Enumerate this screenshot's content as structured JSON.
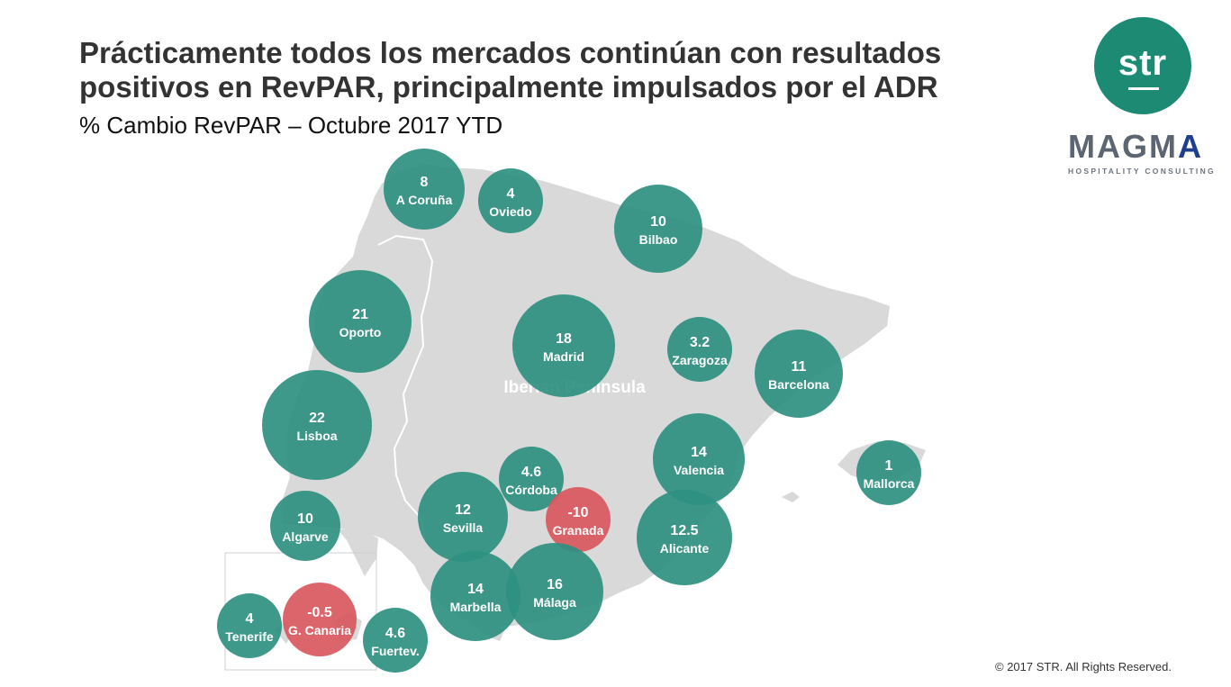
{
  "header": {
    "title": "Prácticamente todos los mercados continúan con resultados positivos en RevPAR, principalmente impulsados por el ADR",
    "subtitle": "% Cambio RevPAR – Octubre 2017 YTD"
  },
  "map": {
    "region_label": "Iberian Peninsula"
  },
  "logos": {
    "str": "str",
    "magma_left": "MAGM",
    "magma_right": "A",
    "magma_sub": "HOSPITALITY CONSULTING"
  },
  "footer": {
    "copyright": "© 2017 STR. All Rights Reserved."
  },
  "colors": {
    "positive": "#2e9080",
    "negative": "#d9575e",
    "land": "#d9d9d9",
    "brand": "#1d8a73"
  },
  "chart_data": {
    "type": "bubble-map",
    "title": "% Cambio RevPAR – Octubre 2017 YTD",
    "points": [
      {
        "label": "A Coruña",
        "value": "8"
      },
      {
        "label": "Oviedo",
        "value": "4"
      },
      {
        "label": "Bilbao",
        "value": "10"
      },
      {
        "label": "Oporto",
        "value": "21"
      },
      {
        "label": "Madrid",
        "value": "18"
      },
      {
        "label": "Zaragoza",
        "value": "3.2"
      },
      {
        "label": "Barcelona",
        "value": "11"
      },
      {
        "label": "Lisboa",
        "value": "22"
      },
      {
        "label": "Valencia",
        "value": "14"
      },
      {
        "label": "Mallorca",
        "value": "1"
      },
      {
        "label": "Córdoba",
        "value": "4.6"
      },
      {
        "label": "Sevilla",
        "value": "12"
      },
      {
        "label": "Granada",
        "value": "-10"
      },
      {
        "label": "Alicante",
        "value": "12.5"
      },
      {
        "label": "Algarve",
        "value": "10"
      },
      {
        "label": "Marbella",
        "value": "14"
      },
      {
        "label": "Málaga",
        "value": "16"
      },
      {
        "label": "Tenerife",
        "value": "4"
      },
      {
        "label": "G. Canaria",
        "value": "-0.5"
      },
      {
        "label": "Fuertev.",
        "value": "4.6"
      }
    ]
  }
}
